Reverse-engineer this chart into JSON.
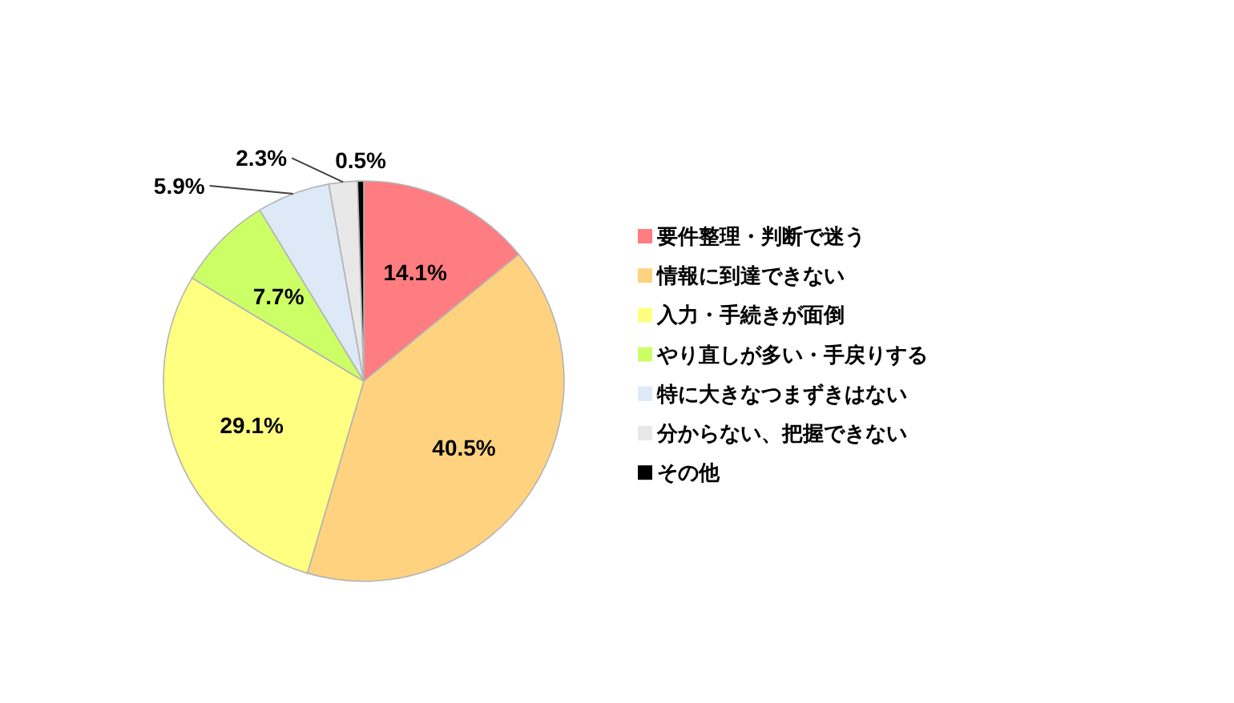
{
  "chart_data": {
    "type": "pie",
    "categories": [
      "要件整理・判断で迷う",
      "情報に到達できない",
      "入力・手続きが面倒",
      "やり直しが多い・手戻りする",
      "特に大きなつまずきはない",
      "分からない、把握できない",
      "その他"
    ],
    "values": [
      14.1,
      40.5,
      29.1,
      7.7,
      5.9,
      2.3,
      0.5
    ],
    "colors": [
      "#ff7c80",
      "#ffd27f",
      "#ffff80",
      "#ccff66",
      "#dde9f7",
      "#e8e8e8",
      "#000000"
    ],
    "value_labels": [
      "14.1%",
      "40.5%",
      "29.1%",
      "7.7%",
      "5.9%",
      "2.3%",
      "0.5%"
    ],
    "legend": "right"
  }
}
